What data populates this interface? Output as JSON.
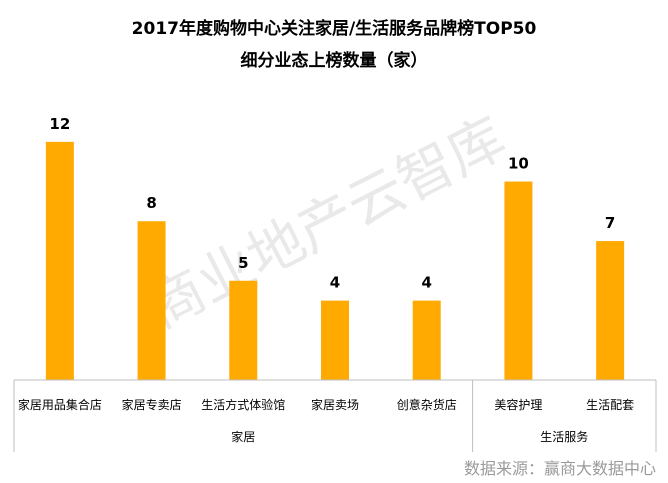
{
  "chart_data": {
    "type": "bar",
    "title": "2017年度购物中心关注家居/生活服务品牌榜TOP50",
    "subtitle": "细分业态上榜数量（家）",
    "categories": [
      "家居用品集合店",
      "家居专卖店",
      "生活方式体验馆",
      "家居卖场",
      "创意杂货店",
      "美容护理",
      "生活配套"
    ],
    "values": [
      12,
      8,
      5,
      4,
      4,
      10,
      7
    ],
    "groups": [
      {
        "label": "家居",
        "count": 5
      },
      {
        "label": "生活服务",
        "count": 2
      }
    ],
    "ylim": [
      0,
      13
    ],
    "grid": false,
    "legend": "none"
  },
  "colors": {
    "bar": "#FFAA00",
    "axis": "#bfbfbf",
    "watermark": "#e9e9e9",
    "source": "#9a9a9a"
  },
  "watermark": "商业地产云智库",
  "source": "数据来源：赢商大数据中心"
}
